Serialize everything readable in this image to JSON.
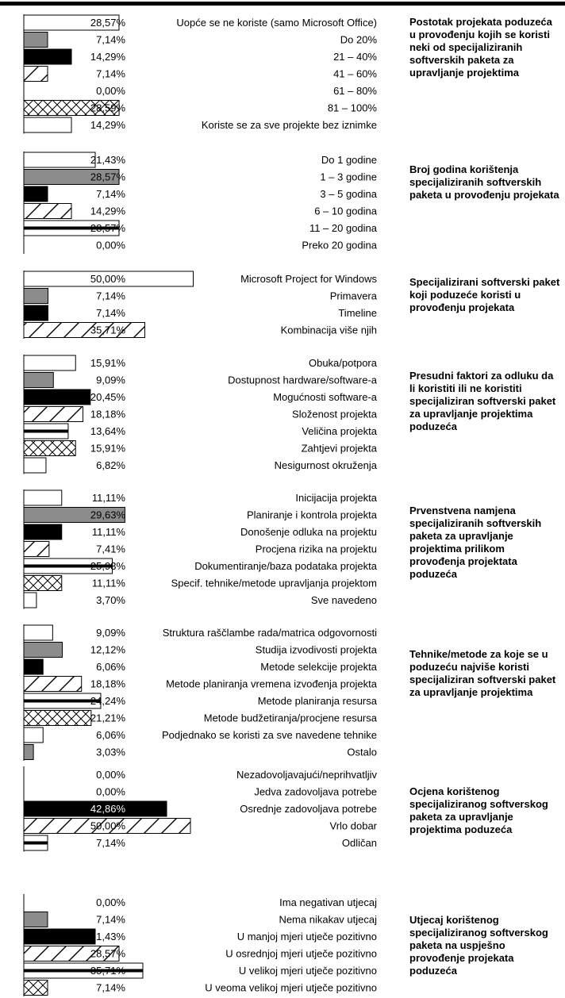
{
  "chart_data": [
    {
      "type": "bar",
      "title": "Postotak projekata poduzeća u provođenju kojih se koristi neki od specijaliziranih softverskih paketa za upravljanje projektima",
      "categories": [
        "Uopće se ne koriste (samo Microsoft Office)",
        "Do 20%",
        "21 – 40%",
        "41 – 60%",
        "61 – 80%",
        "81 – 100%",
        "Koriste se za sve projekte bez iznimke"
      ],
      "values": [
        28.57,
        7.14,
        14.29,
        7.14,
        0.0,
        28.59,
        14.29
      ],
      "labels": [
        "28,57%",
        "7,14%",
        "14,29%",
        "7,14%",
        "0,00%",
        "28,59%",
        "14,29%"
      ],
      "patterns": [
        "white",
        "gray",
        "black",
        "hatch",
        "lines",
        "cross",
        "white"
      ],
      "xlim": [
        0,
        50
      ]
    },
    {
      "type": "bar",
      "title": "Broj godina korištenja specijaliziranih softverskih paketa u provođenju projekata",
      "categories": [
        "Do 1 godine",
        "1 – 3 godine",
        "3 – 5 godina",
        "6 – 10 godina",
        "11 – 20 godina",
        "Preko 20 godina"
      ],
      "values": [
        21.43,
        28.57,
        7.14,
        14.29,
        28.57,
        0.0
      ],
      "labels": [
        "21,43%",
        "28,57%",
        "7,14%",
        "14,29%",
        "28,57%",
        "0,00%"
      ],
      "patterns": [
        "white",
        "gray",
        "black",
        "hatch",
        "lines",
        "cross"
      ],
      "xlim": [
        0,
        50
      ]
    },
    {
      "type": "bar",
      "title": "Specijalizirani softverski paket koji poduzeće koristi u provođenju projekata",
      "categories": [
        "Microsoft Project for Windows",
        "Primavera",
        "Timeline",
        "Kombinacija više njih"
      ],
      "values": [
        50.0,
        7.14,
        7.14,
        35.71
      ],
      "labels": [
        "50,00%",
        "7,14%",
        "7,14%",
        "35,71%"
      ],
      "patterns": [
        "white",
        "gray",
        "black",
        "hatch"
      ],
      "xlim": [
        0,
        50
      ]
    },
    {
      "type": "bar",
      "title": "Presudni faktori za odluku da li koristiti ili ne koristiti specijaliziran softverski paket za upravljanje projektima poduzeća",
      "categories": [
        "Obuka/potpora",
        "Dostupnost hardware/software-a",
        "Mogućnosti software-a",
        "Složenost projekta",
        "Veličina projekta",
        "Zahtjevi projekta",
        "Nesigurnost okruženja"
      ],
      "values": [
        15.91,
        9.09,
        20.45,
        18.18,
        13.64,
        15.91,
        6.82
      ],
      "labels": [
        "15,91%",
        "9,09%",
        "20,45%",
        "18,18%",
        "13,64%",
        "15,91%",
        "6,82%"
      ],
      "patterns": [
        "white",
        "gray",
        "black",
        "hatch",
        "lines",
        "cross",
        "white"
      ],
      "xlim": [
        0,
        25
      ]
    },
    {
      "type": "bar",
      "title": "Prvenstvena namjena specijaliziranih softverskih paketa za upravljanje projektima prilikom provođenja projektata poduzeća",
      "categories": [
        "Inicijacija projekta",
        "Planiranje i kontrola projekta",
        "Donošenje odluka na projektu",
        "Procjena rizika na projektu",
        "Dokumentiranje/baza podataka projekta",
        "Specif. tehnike/metode upravljanja projektom",
        "Sve navedeno"
      ],
      "values": [
        11.11,
        29.63,
        11.11,
        7.41,
        25.93,
        11.11,
        3.7
      ],
      "labels": [
        "11,11%",
        "29,63%",
        "11,11%",
        "7,41%",
        "25,93%",
        "11,11%",
        "3,70%"
      ],
      "patterns": [
        "white",
        "gray",
        "black",
        "hatch",
        "lines",
        "cross",
        "white"
      ],
      "xlim": [
        0,
        30
      ]
    },
    {
      "type": "bar",
      "title": "Tehnike/metode za koje se u poduzeću najviše koristi specijaliziran softverski paket za upravljanje projektima",
      "categories": [
        "Struktura raščlambe rada/matrica odgovornosti",
        "Studija izvodivosti projekta",
        "Metode selekcije projekta",
        "Metode planiranja vremena izvođenja projekta",
        "Metode planiranja resursa",
        "Metode budžetiranja/procjene resursa",
        "Podjednako se koristi za sve navedene tehnike",
        "Ostalo"
      ],
      "values": [
        9.09,
        12.12,
        6.06,
        18.18,
        24.24,
        21.21,
        6.06,
        3.03
      ],
      "labels": [
        "9,09%",
        "12,12%",
        "6,06%",
        "18,18%",
        "24,24%",
        "21,21%",
        "6,06%",
        "3,03%"
      ],
      "patterns": [
        "white",
        "gray",
        "black",
        "hatch",
        "lines",
        "cross",
        "white",
        "gray"
      ],
      "xlim": [
        0,
        30
      ]
    },
    {
      "type": "bar",
      "title": "Ocjena korištenog specijaliziranog softverskog paketa za upravljanje projektima poduzeća",
      "categories": [
        "Nezadovoljavajući/neprihvatljiv",
        "Jedva zadovoljava potrebe",
        "Osrednje zadovoljava potrebe",
        "Vrlo dobar",
        "Odličan"
      ],
      "values": [
        0.0,
        0.0,
        42.86,
        50.0,
        7.14
      ],
      "labels": [
        "0,00%",
        "0,00%",
        "42,86%",
        "50,00%",
        "7,14%"
      ],
      "patterns": [
        "white",
        "gray",
        "black",
        "hatch",
        "lines"
      ],
      "xlim": [
        0,
        50
      ]
    },
    {
      "type": "bar",
      "title": "Utjecaj korištenog specijaliziranog softverskog paketa na uspješno provođenje projekata poduzeća",
      "categories": [
        "Ima negativan utjecaj",
        "Nema nikakav utjecaj",
        "U manjoj mjeri utječe pozitivno",
        "U osrednjoj mjeri utječe pozitivno",
        "U velikoj mjeri utječe pozitivno",
        "U veoma velikoj mjeri utječe pozitivno"
      ],
      "values": [
        0.0,
        7.14,
        21.43,
        28.57,
        35.71,
        7.14
      ],
      "labels": [
        "0,00%",
        "7,14%",
        "21,43%",
        "28,57%",
        "35,71%",
        "7,14%"
      ],
      "patterns": [
        "white",
        "gray",
        "black",
        "hatch",
        "lines",
        "cross"
      ],
      "xlim": [
        0,
        40
      ]
    }
  ]
}
